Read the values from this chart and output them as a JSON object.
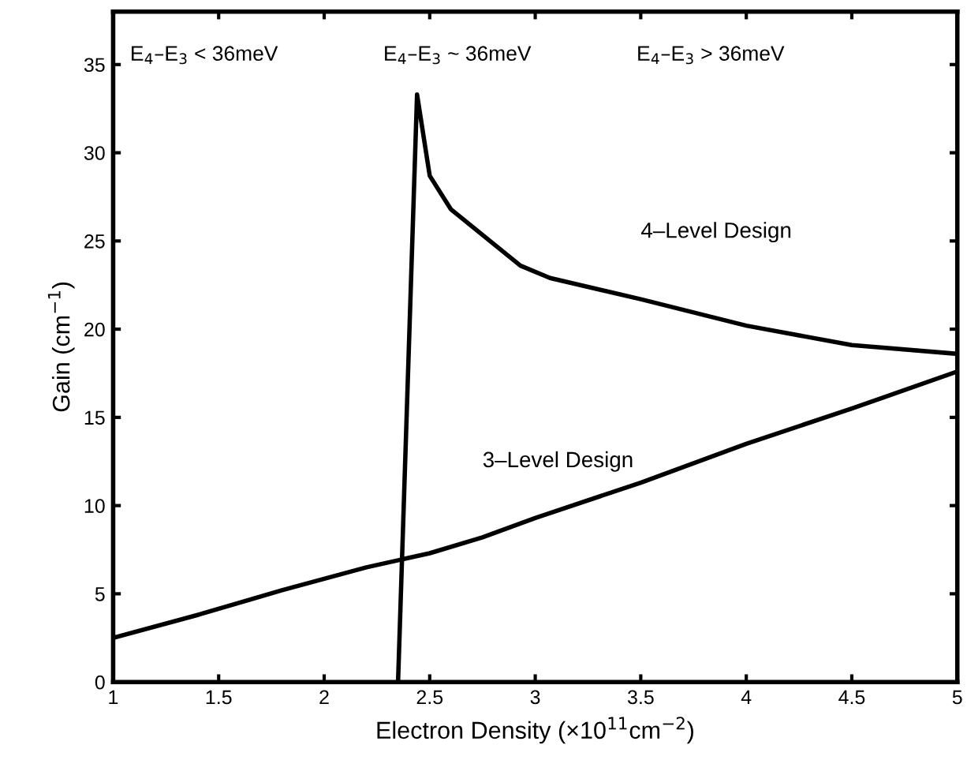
{
  "chart_data": {
    "type": "line",
    "xlabel": "Electron Density (×10$^{11}$cm$^{−2}$)",
    "ylabel": "Gain (cm$^{−1}$)",
    "annotations": [
      "E$_{4}$–E$_{3}$ < 36meV",
      "E$_{4}$–E$_{3}$ ~ 36meV",
      "E$_{4}$–E$_{3}$ > 36meV"
    ],
    "series": [
      {
        "name": "4–Level Design",
        "color": "#000000",
        "x": [
          2.35,
          2.44,
          2.5,
          2.6,
          2.93,
          3.07,
          3.5,
          4,
          4.5,
          5
        ],
        "values": [
          0,
          33.3,
          28.7,
          26.8,
          23.6,
          22.9,
          21.7,
          20.2,
          19.1,
          18.6
        ]
      },
      {
        "name": "3–Level Design",
        "color": "#000000",
        "x": [
          1,
          1.4,
          1.8,
          2.2,
          2.5,
          2.75,
          3,
          3.5,
          4,
          4.5,
          5
        ],
        "values": [
          2.5,
          3.8,
          5.2,
          6.5,
          7.3,
          8.2,
          9.3,
          11.3,
          13.5,
          15.5,
          17.6
        ]
      }
    ],
    "xlim": [
      1,
      5
    ],
    "ylim": [
      0,
      38
    ],
    "xticks": [
      1,
      1.5,
      2,
      2.5,
      3,
      3.5,
      4,
      4.5,
      5
    ],
    "yticks": [
      0,
      5,
      10,
      15,
      20,
      25,
      30,
      35
    ],
    "grid": false,
    "legend": false,
    "marker": "none",
    "line_style": "solid"
  }
}
